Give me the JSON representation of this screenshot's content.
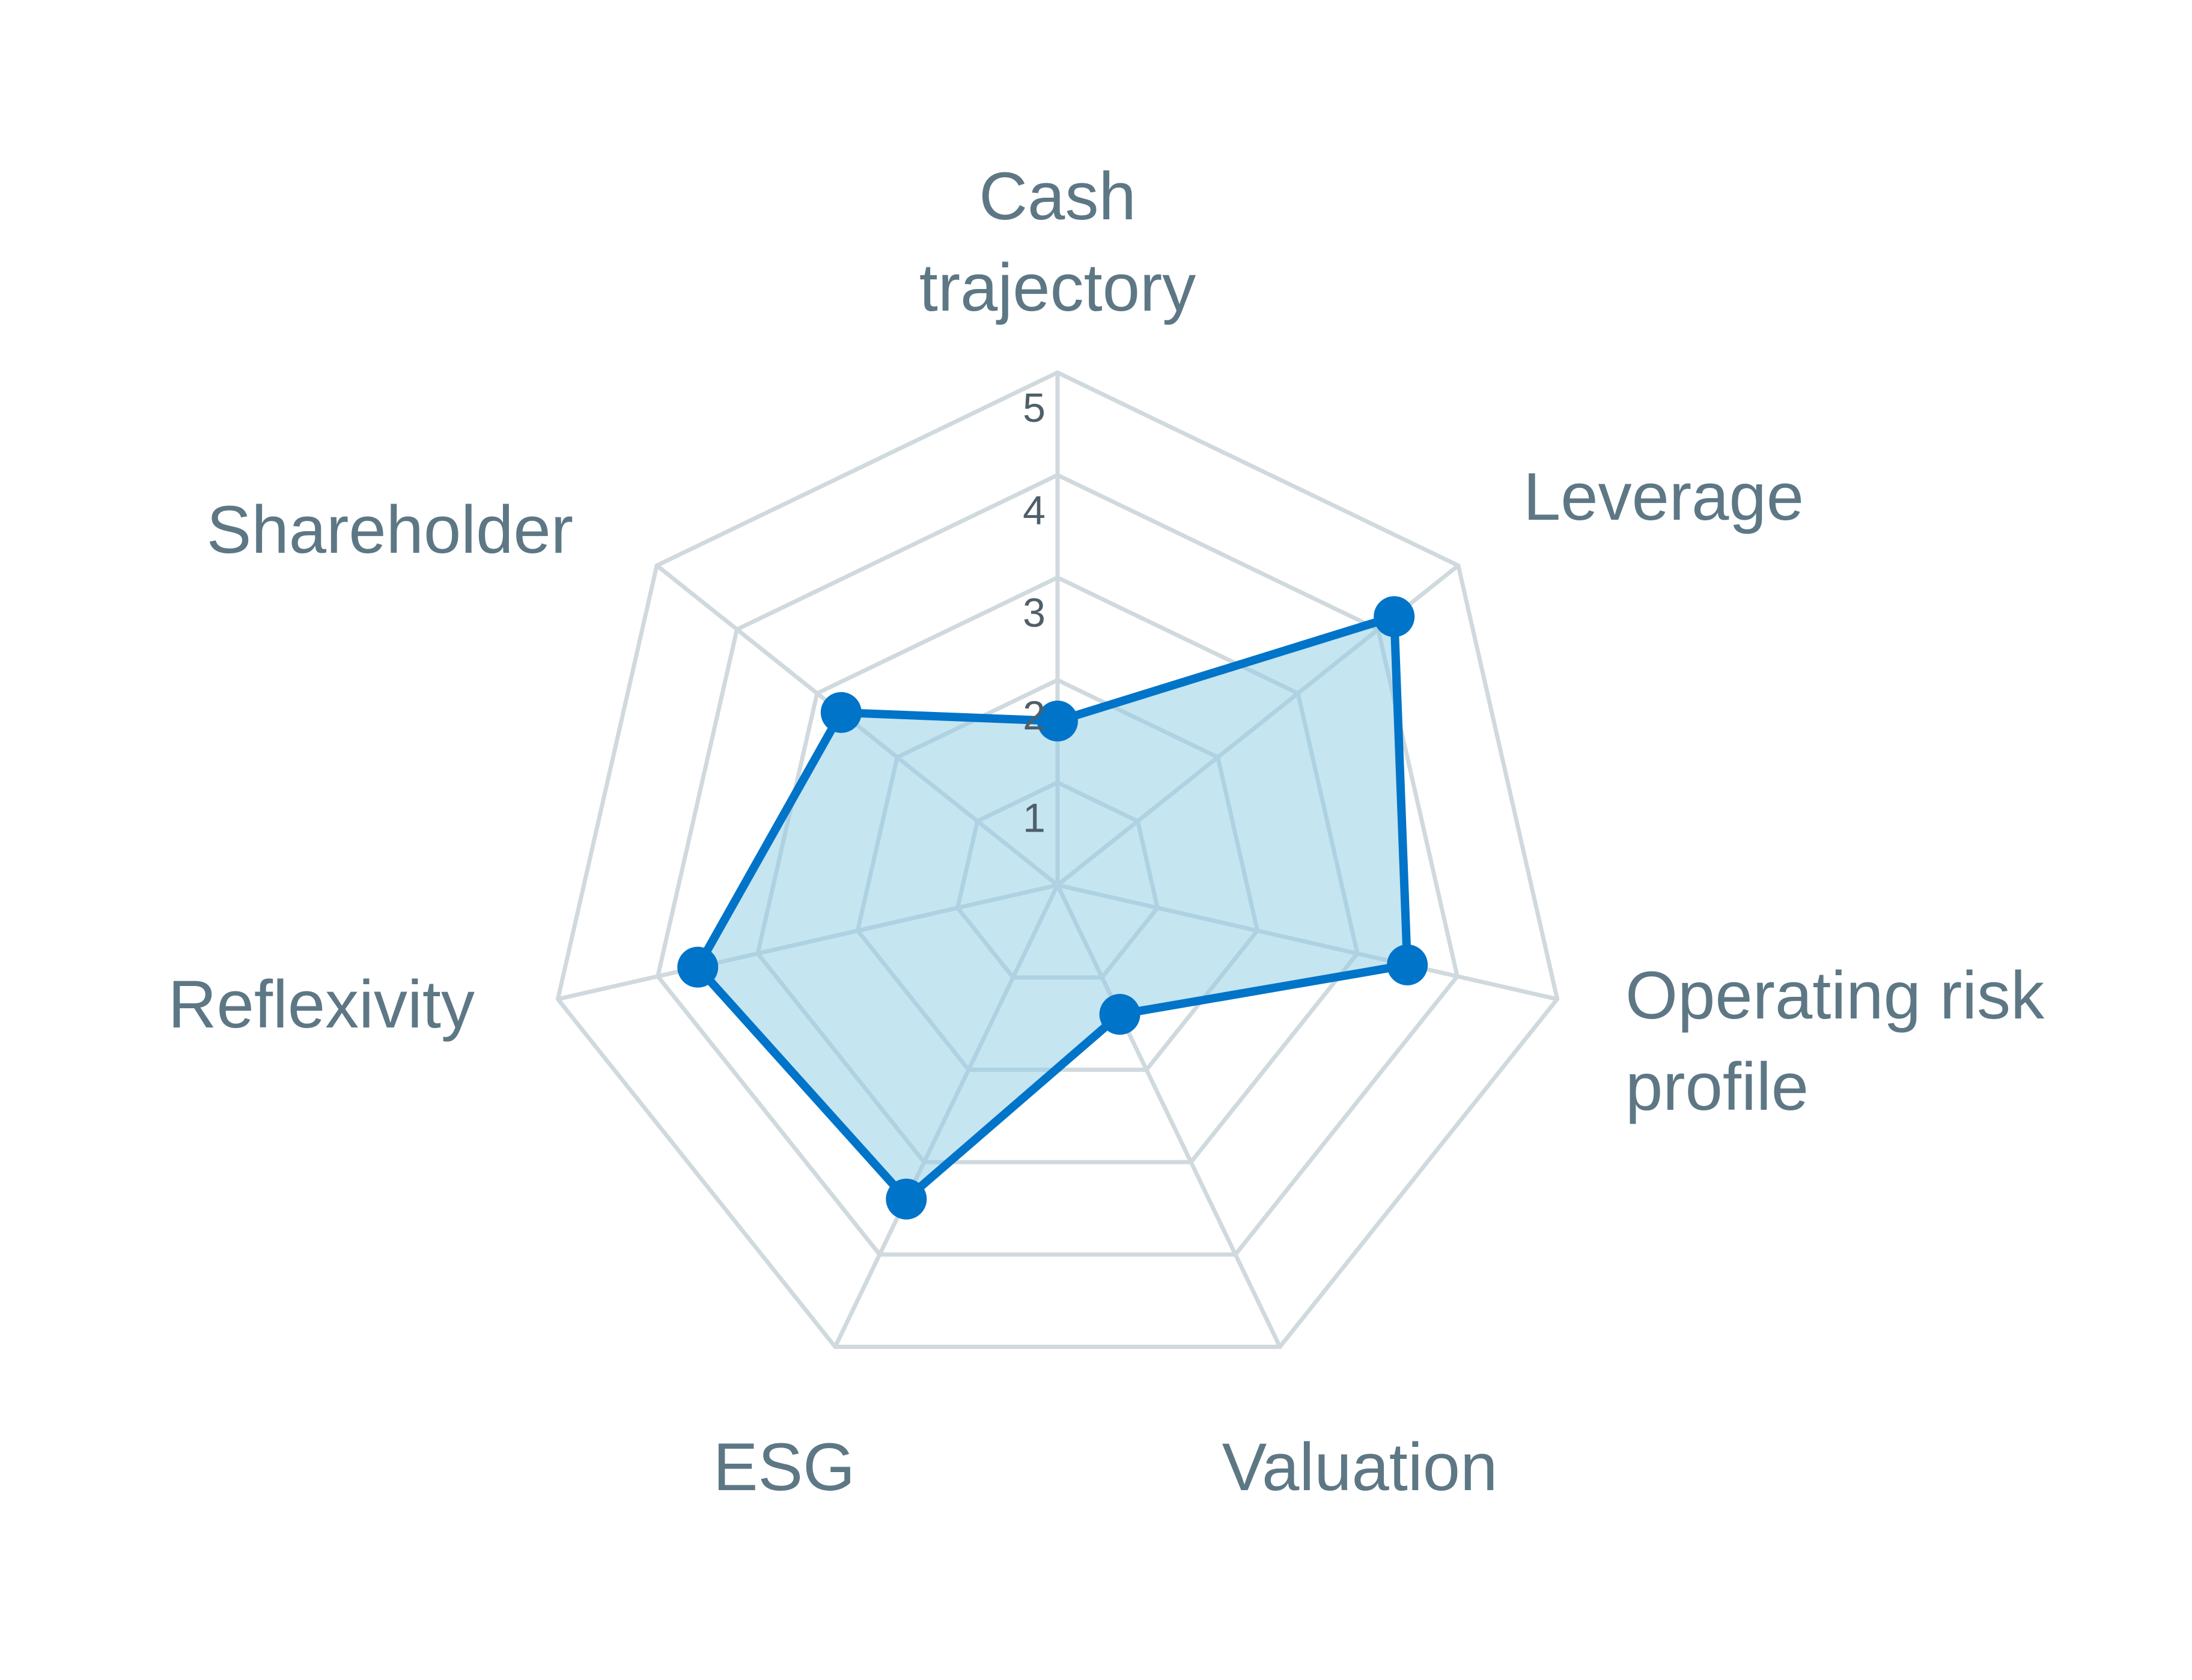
{
  "chart_data": {
    "type": "radar",
    "axes": [
      {
        "label_lines": [
          "Cash",
          "trajectory"
        ]
      },
      {
        "label_lines": [
          "Leverage"
        ]
      },
      {
        "label_lines": [
          "Operating risk",
          "profile"
        ]
      },
      {
        "label_lines": [
          "Valuation"
        ]
      },
      {
        "label_lines": [
          "ESG"
        ]
      },
      {
        "label_lines": [
          "Reflexivity"
        ]
      },
      {
        "label_lines": [
          "Shareholder"
        ]
      }
    ],
    "series": [
      {
        "values": [
          1.6,
          4.2,
          3.5,
          1.4,
          3.4,
          3.6,
          2.7
        ]
      }
    ],
    "radial_range": [
      0,
      5
    ],
    "radial_ticks": [
      "1",
      "2",
      "3",
      "4",
      "5"
    ],
    "grid": true,
    "legend": "none",
    "colors": {
      "line": "#0074c8",
      "fill": "#8ccbe3",
      "grid": "#d0d9de",
      "label": "#5d7785"
    }
  }
}
